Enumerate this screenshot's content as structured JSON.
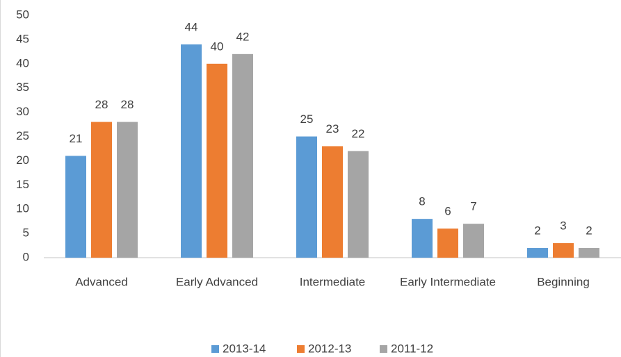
{
  "chart_data": {
    "type": "bar",
    "categories": [
      "Advanced",
      "Early Advanced",
      "Intermediate",
      "Early Intermediate",
      "Beginning"
    ],
    "series": [
      {
        "name": "2013-14",
        "color": "#5b9bd5",
        "values": [
          21,
          44,
          25,
          8,
          2
        ]
      },
      {
        "name": "2012-13",
        "color": "#ed7d31",
        "values": [
          28,
          40,
          23,
          6,
          3
        ]
      },
      {
        "name": "2011-12",
        "color": "#a5a5a5",
        "values": [
          28,
          42,
          22,
          7,
          2
        ]
      }
    ],
    "ylim": [
      0,
      50
    ],
    "yticks": [
      0,
      5,
      10,
      15,
      20,
      25,
      30,
      35,
      40,
      45,
      50
    ],
    "grid": false,
    "legend": "bottom"
  }
}
